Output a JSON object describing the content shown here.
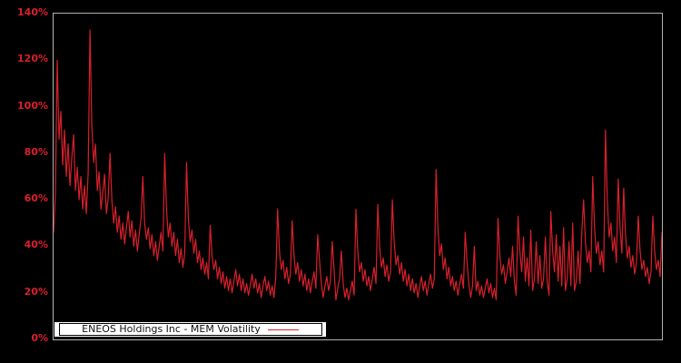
{
  "chart": {
    "background_color": "#000000",
    "axis_border_color": "#b3b3b3",
    "line_color": "#d8202c",
    "tick_label_color": "#d8202c",
    "y_ticks": [
      "140%",
      "120%",
      "100%",
      "80%",
      "60%",
      "40%",
      "20%",
      "0%"
    ],
    "legend": {
      "label": "ENEOS Holdings Inc - MEM Volatility",
      "sample_line_color": "#d8202c"
    }
  },
  "chart_data": {
    "type": "line",
    "title": "",
    "xlabel": "",
    "ylabel": "",
    "unit": "%",
    "ylim": [
      0,
      140
    ],
    "y_tick_step": 20,
    "x_tick_labels_visible": false,
    "grid": false,
    "legend_position": "lower-left",
    "series": [
      {
        "name": "ENEOS Holdings Inc - MEM Volatility",
        "color": "#d8202c",
        "values": [
          46,
          62,
          120,
          86,
          98,
          75,
          90,
          70,
          84,
          66,
          78,
          88,
          64,
          74,
          60,
          70,
          56,
          66,
          54,
          72,
          133,
          92,
          76,
          84,
          64,
          72,
          56,
          63,
          71,
          54,
          61,
          80,
          60,
          50,
          57,
          46,
          53,
          43,
          50,
          41,
          48,
          55,
          44,
          51,
          40,
          47,
          38,
          45,
          52,
          70,
          50,
          43,
          48,
          39,
          45,
          36,
          42,
          34,
          40,
          46,
          38,
          80,
          56,
          44,
          50,
          40,
          46,
          36,
          43,
          33,
          39,
          31,
          37,
          76,
          52,
          42,
          47,
          37,
          43,
          33,
          38,
          30,
          35,
          28,
          33,
          26,
          49,
          36,
          30,
          34,
          26,
          31,
          24,
          29,
          22,
          27,
          21,
          26,
          20,
          25,
          30,
          23,
          28,
          21,
          26,
          20,
          24,
          19,
          23,
          28,
          22,
          26,
          20,
          24,
          18,
          23,
          27,
          21,
          25,
          19,
          23,
          18,
          27,
          56,
          38,
          30,
          34,
          26,
          31,
          24,
          28,
          51,
          36,
          28,
          33,
          25,
          30,
          23,
          28,
          21,
          26,
          20,
          25,
          29,
          22,
          45,
          34,
          24,
          18,
          23,
          27,
          21,
          25,
          42,
          30,
          17,
          22,
          26,
          38,
          24,
          18,
          22,
          17,
          21,
          25,
          19,
          56,
          38,
          29,
          33,
          25,
          30,
          23,
          27,
          21,
          26,
          31,
          24,
          58,
          40,
          31,
          35,
          27,
          32,
          25,
          29,
          60,
          42,
          32,
          36,
          28,
          33,
          25,
          30,
          23,
          28,
          21,
          26,
          20,
          24,
          18,
          23,
          27,
          21,
          25,
          19,
          24,
          28,
          22,
          26,
          73,
          48,
          36,
          41,
          30,
          35,
          26,
          31,
          23,
          27,
          21,
          25,
          19,
          24,
          28,
          22,
          46,
          33,
          24,
          18,
          23,
          40,
          21,
          25,
          19,
          23,
          18,
          22,
          26,
          20,
          24,
          18,
          22,
          17,
          52,
          36,
          28,
          32,
          24,
          29,
          35,
          27,
          40,
          25,
          19,
          53,
          38,
          29,
          44,
          25,
          35,
          23,
          47,
          21,
          26,
          42,
          24,
          36,
          22,
          26,
          44,
          25,
          19,
          55,
          38,
          29,
          45,
          25,
          40,
          23,
          48,
          21,
          26,
          42,
          23,
          50,
          21,
          25,
          38,
          24,
          46,
          60,
          42,
          33,
          38,
          29,
          70,
          48,
          37,
          42,
          32,
          38,
          29,
          90,
          60,
          44,
          50,
          38,
          44,
          33,
          69,
          48,
          37,
          65,
          45,
          35,
          40,
          31,
          36,
          28,
          33,
          53,
          38,
          30,
          34,
          27,
          31,
          24,
          29,
          53,
          38,
          30,
          34,
          27,
          46
        ]
      }
    ]
  }
}
